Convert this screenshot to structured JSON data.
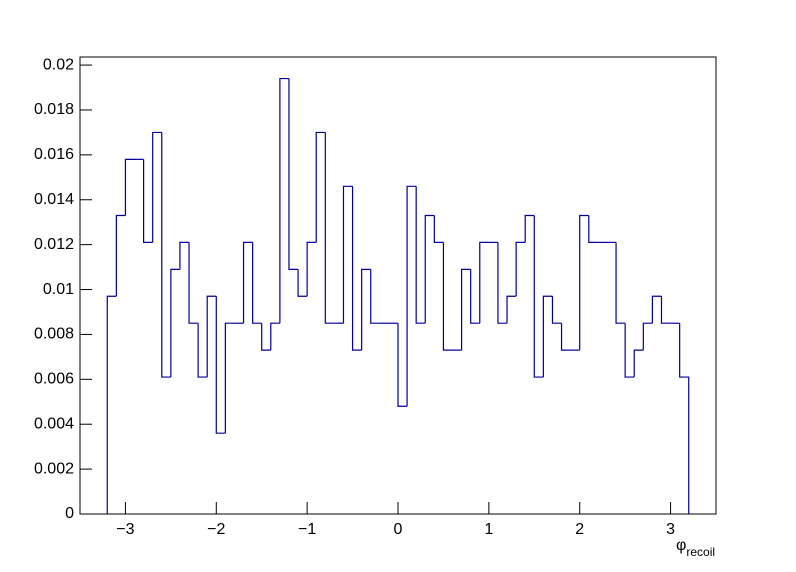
{
  "chart_data": {
    "type": "histogram",
    "x_label": "φ",
    "x_label_sub": "recoil",
    "color": "#000099",
    "bins": [
      -3.2,
      -3.1,
      -3.0,
      -2.9,
      -2.8,
      -2.7,
      -2.6,
      -2.5,
      -2.4,
      -2.3,
      -2.2,
      -2.1,
      -2.0,
      -1.9,
      -1.8,
      -1.7,
      -1.6,
      -1.5,
      -1.4,
      -1.3,
      -1.2,
      -1.1,
      -1.0,
      -0.9,
      -0.8,
      -0.7,
      -0.6,
      -0.5,
      -0.4,
      -0.3,
      -0.2,
      -0.1,
      0,
      0.1,
      0.2,
      0.3,
      0.4,
      0.5,
      0.6,
      0.7,
      0.8,
      0.9,
      1.0,
      1.1,
      1.2,
      1.3,
      1.4,
      1.5,
      1.6,
      1.7,
      1.8,
      1.9,
      2.0,
      2.1,
      2.2,
      2.3,
      2.4,
      2.5,
      2.6,
      2.7,
      2.8,
      2.9,
      3.0,
      3.1,
      3.2
    ],
    "values": [
      0.0097,
      0.0133,
      0.0158,
      0.0158,
      0.0121,
      0.017,
      0.0061,
      0.0109,
      0.0121,
      0.0085,
      0.0061,
      0.0097,
      0.0036,
      0.0085,
      0.0085,
      0.0121,
      0.0085,
      0.0073,
      0.0085,
      0.0194,
      0.0109,
      0.0097,
      0.0121,
      0.017,
      0.0085,
      0.0085,
      0.0146,
      0.0073,
      0.0109,
      0.0085,
      0.0085,
      0.0085,
      0.0048,
      0.0146,
      0.0085,
      0.0133,
      0.0121,
      0.0073,
      0.0073,
      0.0109,
      0.0085,
      0.0121,
      0.0121,
      0.0085,
      0.0097,
      0.0121,
      0.0133,
      0.0061,
      0.0097,
      0.0085,
      0.0073,
      0.0073,
      0.0133,
      0.0121,
      0.0121,
      0.0121,
      0.0085,
      0.0061,
      0.0073,
      0.0085,
      0.0097,
      0.0085,
      0.0085,
      0.0061
    ],
    "xlim": [
      -3.5,
      3.5
    ],
    "xticks": [
      {
        "value": -3,
        "label": "−3"
      },
      {
        "value": -2,
        "label": "−2"
      },
      {
        "value": -1,
        "label": "−1"
      },
      0,
      1,
      2,
      3
    ],
    "ylim": [
      0,
      0.02036
    ],
    "yticks": [
      0,
      0.002,
      0.004,
      0.006,
      0.008,
      0.01,
      0.012,
      0.014,
      0.016,
      0.018,
      0.02
    ]
  }
}
